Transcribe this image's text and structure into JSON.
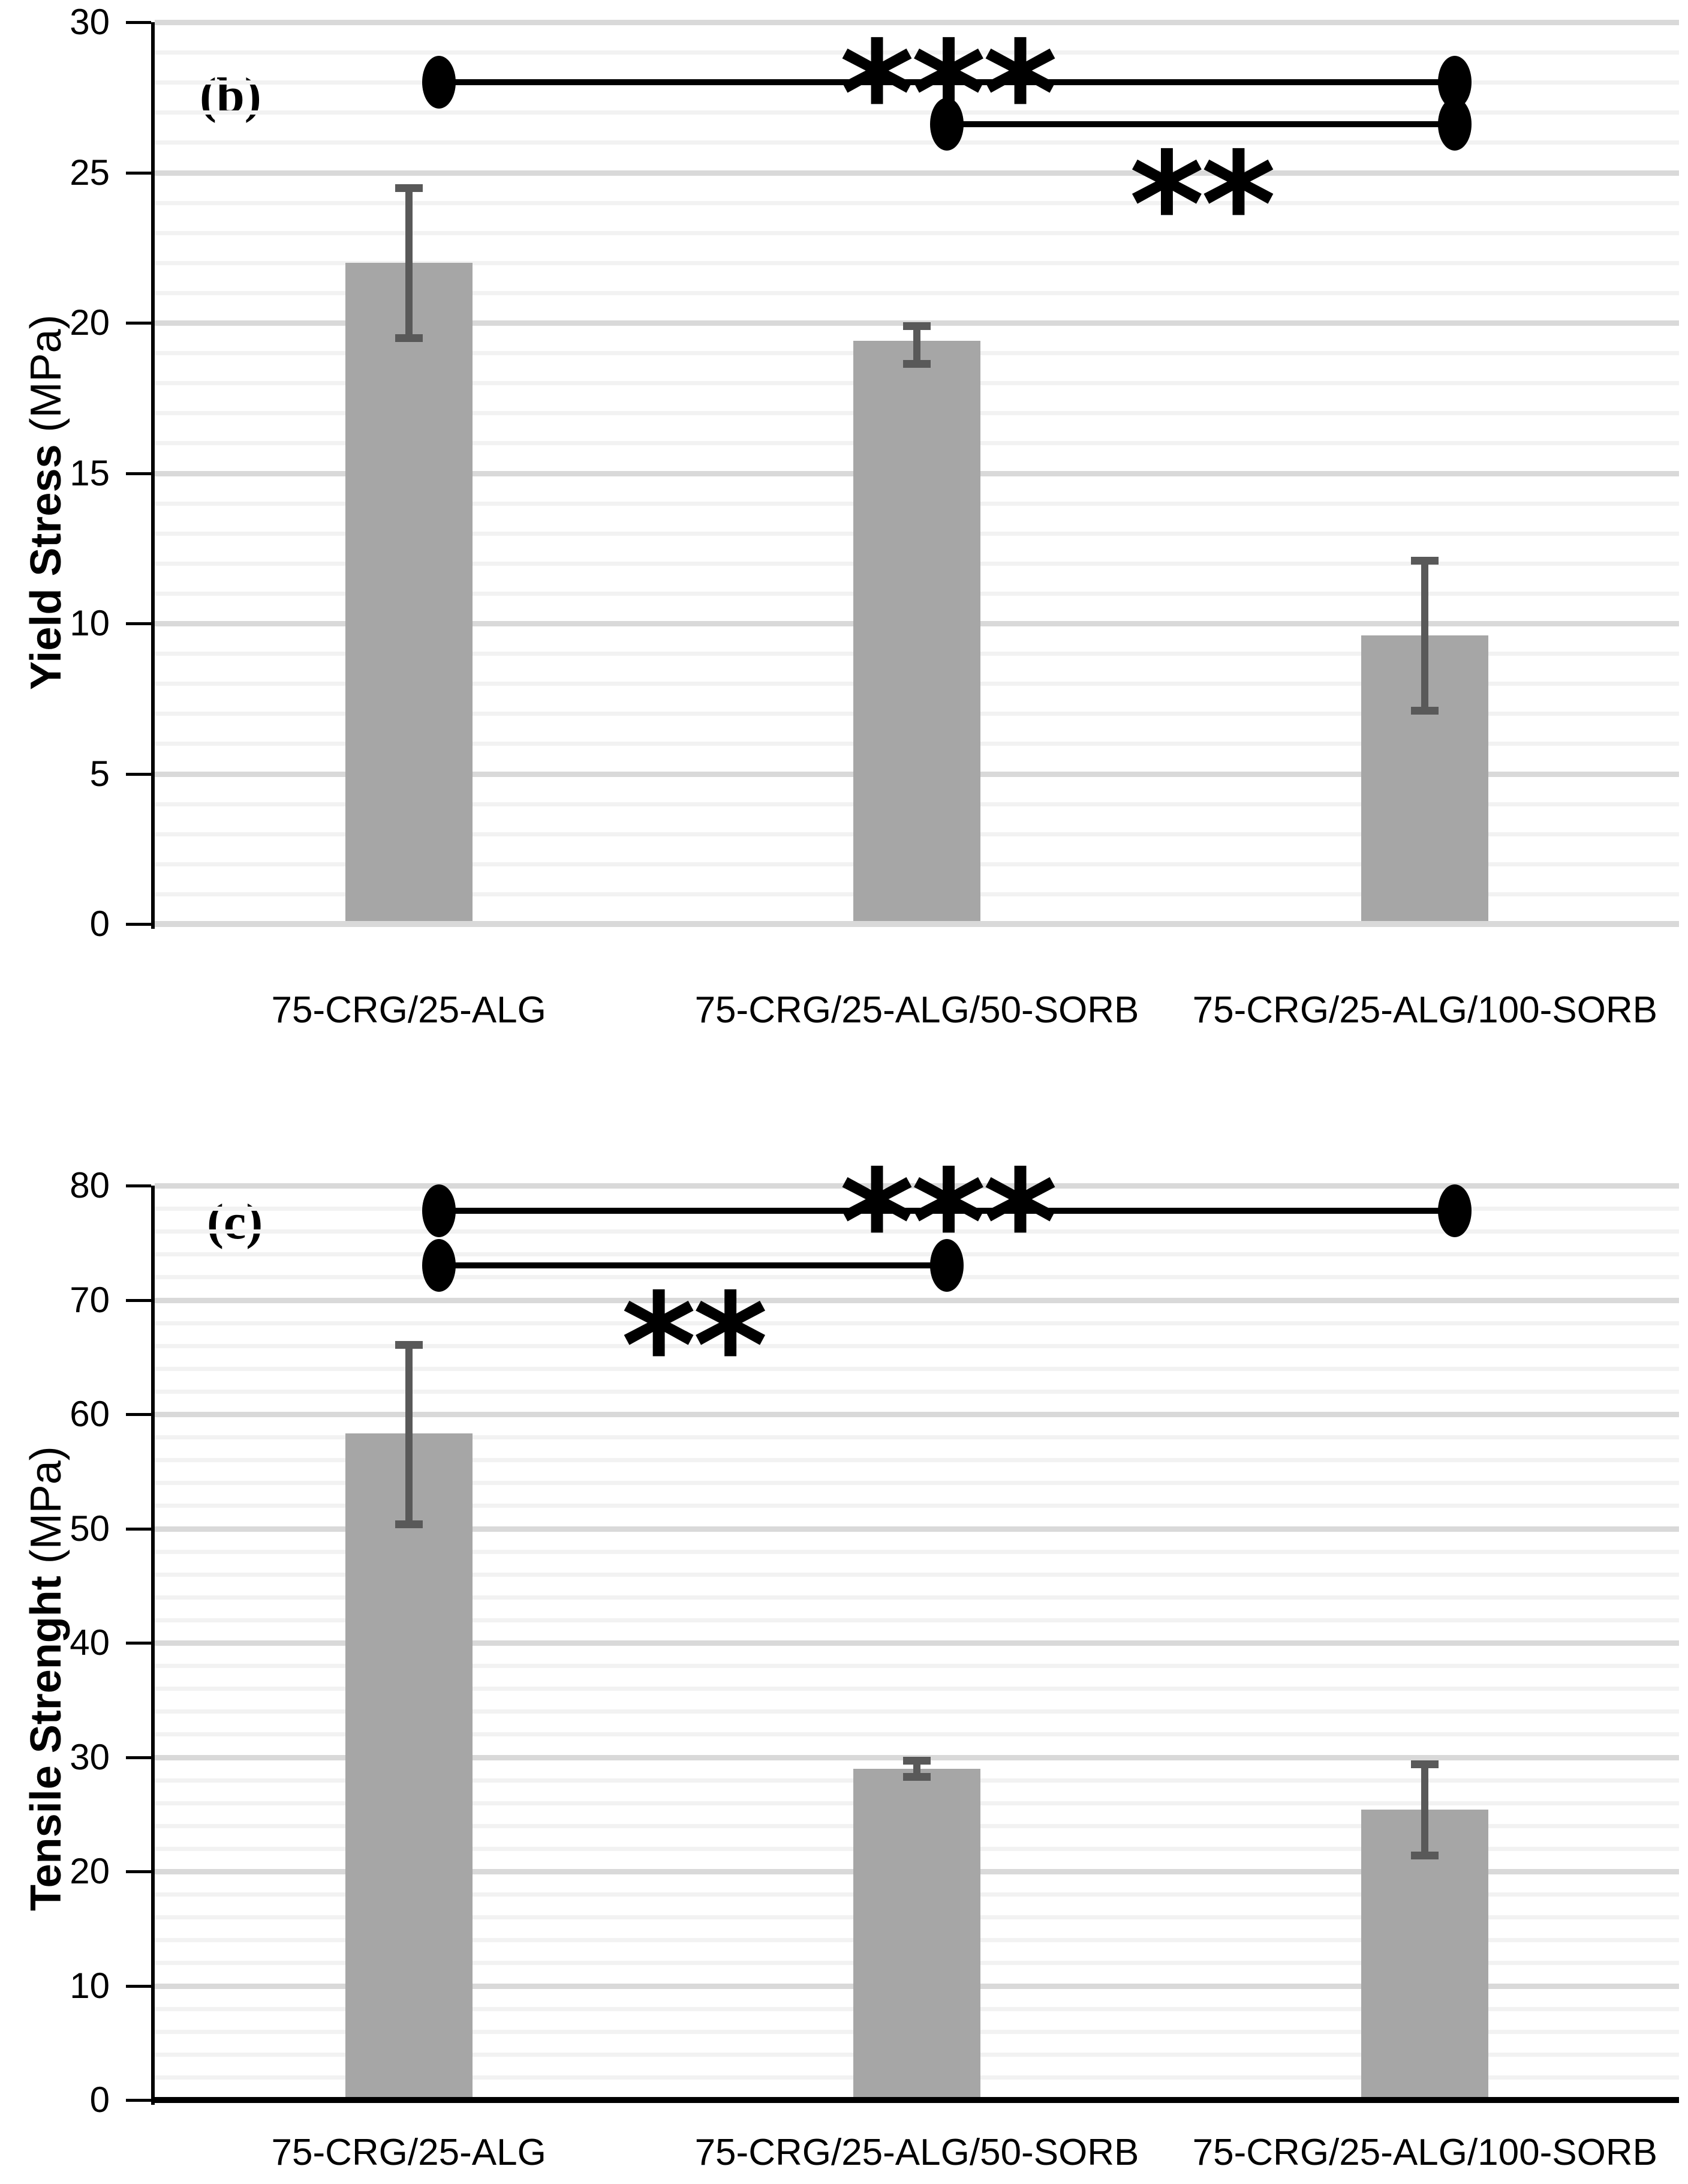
{
  "figure": {
    "description": "Two stacked bar charts comparing mechanical properties of film formulations",
    "background": "#ffffff"
  },
  "colors": {
    "bar_fill": "#a6a6a6",
    "error_bar": "#595959",
    "minor_gridline": "#f2f2f2",
    "major_gridline": "#d9d9d9",
    "axis_line": "#000000",
    "baseline_b": "#d9d9d9",
    "baseline_c": "#000000",
    "significance": "#000000",
    "text": "#000000"
  },
  "chart_data": [
    {
      "type": "bar",
      "panel_label": "(b)",
      "ylabel_bold": "Yield Stress",
      "ylabel_unit": " (MPa)",
      "xlabel": "",
      "categories": [
        "75-CRG/25-ALG",
        "75-CRG/25-ALG/50-SORB",
        "75-CRG/25-ALG/100-SORB"
      ],
      "values": [
        22.0,
        19.4,
        9.6
      ],
      "error_caps_high": [
        24.5,
        19.9,
        12.1
      ],
      "error_caps_low": [
        19.5,
        18.65,
        7.1
      ],
      "ylim": [
        0,
        30
      ],
      "y_major_step": 5,
      "y_minor_step": 1,
      "y_tick_labels": [
        "0",
        "5",
        "10",
        "15",
        "20",
        "25",
        "30"
      ],
      "grid": "on",
      "legend": "none",
      "significance": [
        {
          "label": "***",
          "from_category": 0,
          "to_category": 2,
          "y": 28.0,
          "label_position": "above"
        },
        {
          "label": "**",
          "from_category": 1,
          "to_category": 2,
          "y": 26.6,
          "label_position": "below"
        }
      ]
    },
    {
      "type": "bar",
      "panel_label": "(c)",
      "ylabel_bold": "Tensile Strenght",
      "ylabel_unit": " (MPa)",
      "xlabel": "",
      "categories": [
        "75-CRG/25-ALG",
        "75-CRG/25-ALG/50-SORB",
        "75-CRG/25-ALG/100-SORB"
      ],
      "values": [
        58.3,
        29.0,
        25.4
      ],
      "error_caps_high": [
        66.1,
        29.7,
        29.4
      ],
      "error_caps_low": [
        50.4,
        28.3,
        21.4
      ],
      "ylim": [
        0,
        80
      ],
      "y_major_step": 10,
      "y_minor_step": 2,
      "y_tick_labels": [
        "0",
        "10",
        "20",
        "30",
        "40",
        "50",
        "60",
        "70",
        "80"
      ],
      "grid": "on",
      "legend": "none",
      "significance": [
        {
          "label": "***",
          "from_category": 0,
          "to_category": 2,
          "y": 77.8,
          "label_position": "above"
        },
        {
          "label": "**",
          "from_category": 0,
          "to_category": 1,
          "y": 73.0,
          "label_position": "below"
        }
      ]
    }
  ]
}
